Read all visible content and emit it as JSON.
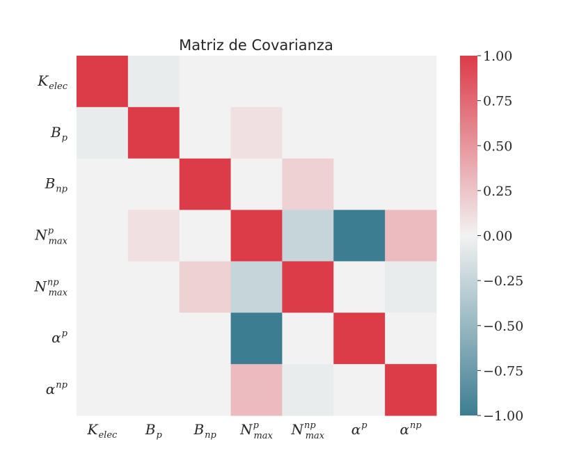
{
  "chart_data": {
    "type": "heatmap",
    "title": "Matriz de Covarianza",
    "row_labels": [
      {
        "base": "K",
        "sup": "",
        "sub": "elec"
      },
      {
        "base": "B",
        "sup": "",
        "sub": "p"
      },
      {
        "base": "B",
        "sup": "",
        "sub": "np"
      },
      {
        "base": "N",
        "sup": "p",
        "sub": "max"
      },
      {
        "base": "N",
        "sup": "np",
        "sub": "max"
      },
      {
        "base": "α",
        "sup": "p",
        "sub": ""
      },
      {
        "base": "α",
        "sup": "np",
        "sub": ""
      }
    ],
    "col_labels": [
      {
        "base": "K",
        "sup": "",
        "sub": "elec"
      },
      {
        "base": "B",
        "sup": "",
        "sub": "p"
      },
      {
        "base": "B",
        "sup": "",
        "sub": "np"
      },
      {
        "base": "N",
        "sup": "p",
        "sub": "max"
      },
      {
        "base": "N",
        "sup": "np",
        "sub": "max"
      },
      {
        "base": "α",
        "sup": "p",
        "sub": ""
      },
      {
        "base": "α",
        "sup": "np",
        "sub": ""
      }
    ],
    "values": [
      [
        1.0,
        -0.05,
        0.0,
        0.0,
        0.0,
        0.0,
        0.0
      ],
      [
        -0.05,
        1.0,
        0.0,
        0.1,
        0.0,
        0.0,
        0.0
      ],
      [
        0.0,
        0.0,
        1.0,
        0.0,
        0.18,
        0.0,
        0.0
      ],
      [
        0.0,
        0.1,
        0.0,
        1.0,
        -0.25,
        -1.0,
        0.3
      ],
      [
        0.0,
        0.0,
        0.18,
        -0.25,
        1.0,
        0.0,
        -0.05
      ],
      [
        0.0,
        0.0,
        0.0,
        -1.0,
        0.0,
        1.0,
        0.0
      ],
      [
        0.0,
        0.0,
        0.0,
        0.3,
        -0.05,
        0.0,
        1.0
      ]
    ],
    "vmin": -1.0,
    "vmax": 1.0,
    "colorbar_ticks": [
      "1.00",
      "0.75",
      "0.50",
      "0.25",
      "0.00",
      "−0.25",
      "−0.50",
      "−0.75",
      "−1.00"
    ],
    "colormap": {
      "negative": "#3d7d91",
      "center": "#f2f2f2",
      "positive": "#dc3b48"
    }
  }
}
